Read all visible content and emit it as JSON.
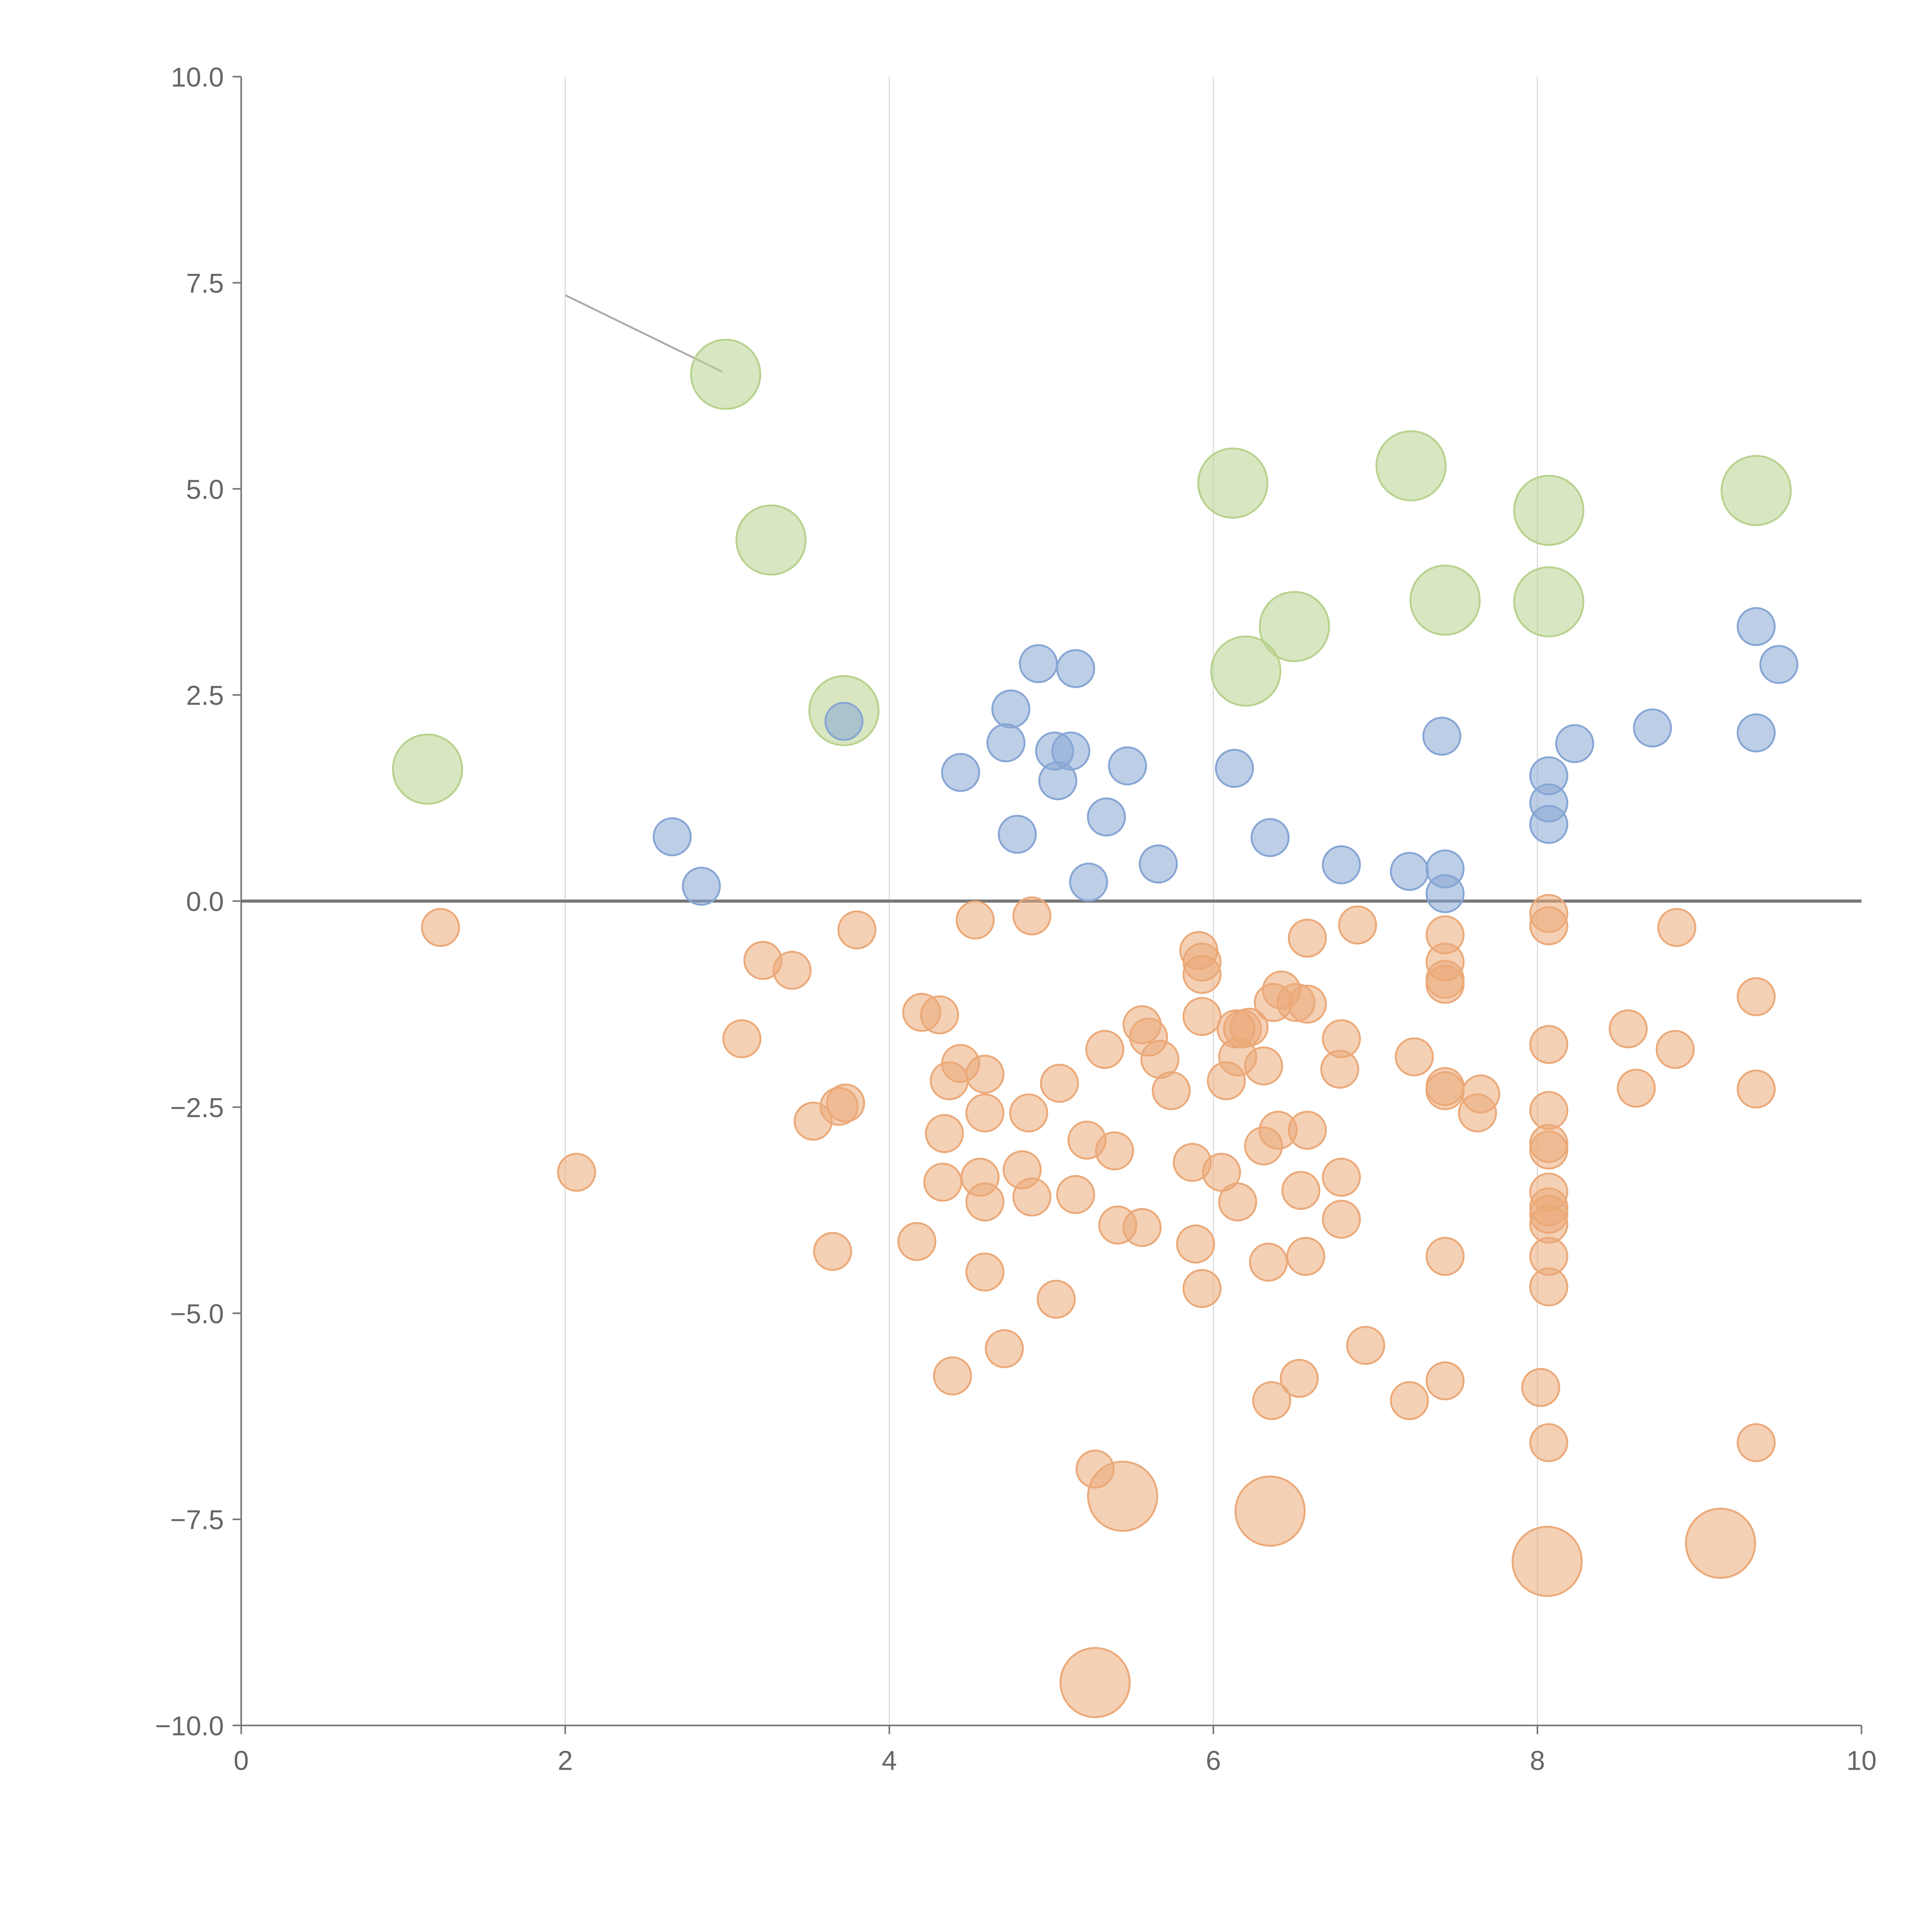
{
  "chart_data": {
    "type": "scatter",
    "title": "",
    "xlabel": "",
    "ylabel": "",
    "xlim": [
      0,
      10
    ],
    "ylim": [
      -10,
      10
    ],
    "grid": "vertical",
    "x_ticks": [
      "0",
      "2",
      "4",
      "6",
      "8",
      "10"
    ],
    "y_ticks": [
      "10.0",
      "7.5",
      "5.0",
      "2.5",
      "0.0",
      "−2.5",
      "−5.0",
      "−7.5",
      "−10.0"
    ],
    "reference_line_y": 0,
    "series": [
      {
        "name": "green",
        "color": "#b8d28e",
        "size": 2,
        "points": [
          [
            1.15,
            1.6
          ],
          [
            2.99,
            6.39
          ],
          [
            3.27,
            4.38
          ],
          [
            3.72,
            2.31
          ],
          [
            6.12,
            5.07
          ],
          [
            6.2,
            2.79
          ],
          [
            6.5,
            3.33
          ],
          [
            7.22,
            5.28
          ],
          [
            7.43,
            3.65
          ],
          [
            8.07,
            4.74
          ],
          [
            8.07,
            3.63
          ],
          [
            9.35,
            4.98
          ]
        ]
      },
      {
        "name": "blue",
        "color": "#86a6d4",
        "size": 1,
        "points": [
          [
            2.66,
            0.78
          ],
          [
            2.84,
            0.18
          ],
          [
            3.72,
            2.18
          ],
          [
            4.44,
            1.56
          ],
          [
            4.72,
            1.92
          ],
          [
            4.75,
            2.33
          ],
          [
            4.79,
            0.81
          ],
          [
            4.92,
            2.88
          ],
          [
            5.02,
            1.82
          ],
          [
            5.04,
            1.46
          ],
          [
            5.12,
            1.82
          ],
          [
            5.15,
            2.82
          ],
          [
            5.23,
            0.23
          ],
          [
            5.34,
            1.02
          ],
          [
            5.47,
            1.64
          ],
          [
            5.66,
            0.45
          ],
          [
            6.13,
            1.61
          ],
          [
            6.35,
            0.77
          ],
          [
            6.79,
            0.44
          ],
          [
            7.21,
            0.36
          ],
          [
            7.41,
            2.0
          ],
          [
            7.43,
            0.39
          ],
          [
            7.43,
            0.09
          ],
          [
            8.07,
            1.52
          ],
          [
            8.07,
            1.19
          ],
          [
            8.07,
            0.93
          ],
          [
            8.23,
            1.91
          ],
          [
            8.71,
            2.1
          ],
          [
            9.35,
            3.33
          ],
          [
            9.49,
            2.87
          ],
          [
            9.35,
            2.04
          ]
        ]
      },
      {
        "name": "orange",
        "color": "#eba978",
        "size": 1,
        "points": [
          [
            1.23,
            -0.32
          ],
          [
            2.07,
            -3.29
          ],
          [
            3.09,
            -1.67
          ],
          [
            3.22,
            -0.72
          ],
          [
            3.4,
            -0.84
          ],
          [
            3.53,
            -2.67
          ],
          [
            3.65,
            -4.25
          ],
          [
            3.69,
            -2.49
          ],
          [
            3.73,
            -2.45
          ],
          [
            3.8,
            -0.35
          ],
          [
            4.17,
            -4.13
          ],
          [
            4.2,
            -1.35
          ],
          [
            4.31,
            -1.38
          ],
          [
            4.37,
            -2.18
          ],
          [
            4.44,
            -1.97
          ],
          [
            4.34,
            -2.82
          ],
          [
            4.33,
            -3.41
          ],
          [
            4.39,
            -5.76
          ],
          [
            4.53,
            -0.23
          ],
          [
            4.59,
            -2.1
          ],
          [
            4.59,
            -2.57
          ],
          [
            4.56,
            -3.35
          ],
          [
            4.59,
            -3.65
          ],
          [
            4.59,
            -4.5
          ],
          [
            4.71,
            -5.43
          ],
          [
            4.82,
            -3.26
          ],
          [
            4.86,
            -2.57
          ],
          [
            4.88,
            -3.59
          ],
          [
            4.88,
            -0.18
          ],
          [
            5.03,
            -4.83
          ],
          [
            5.05,
            -2.21
          ],
          [
            5.15,
            -3.56
          ],
          [
            5.22,
            -2.9
          ],
          [
            5.27,
            -6.89
          ],
          [
            5.33,
            -1.8
          ],
          [
            5.39,
            -3.03
          ],
          [
            5.41,
            -3.93
          ],
          [
            5.56,
            -1.5
          ],
          [
            5.6,
            -1.65
          ],
          [
            5.56,
            -3.96
          ],
          [
            5.67,
            -1.92
          ],
          [
            5.74,
            -2.3
          ],
          [
            5.91,
            -0.6
          ],
          [
            5.93,
            -0.74
          ],
          [
            5.93,
            -0.89
          ],
          [
            5.93,
            -1.4
          ],
          [
            5.87,
            -3.17
          ],
          [
            5.89,
            -4.16
          ],
          [
            5.93,
            -4.7
          ],
          [
            6.08,
            -2.18
          ],
          [
            6.05,
            -3.29
          ],
          [
            6.14,
            -1.55
          ],
          [
            6.18,
            -1.55
          ],
          [
            6.15,
            -1.89
          ],
          [
            6.15,
            -3.65
          ],
          [
            6.22,
            -1.53
          ],
          [
            6.31,
            -2.0
          ],
          [
            6.31,
            -2.97
          ],
          [
            6.37,
            -1.23
          ],
          [
            6.42,
            -1.08
          ],
          [
            6.4,
            -2.78
          ],
          [
            6.34,
            -4.38
          ],
          [
            6.36,
            -6.06
          ],
          [
            6.51,
            -1.23
          ],
          [
            6.58,
            -1.25
          ],
          [
            6.58,
            -0.45
          ],
          [
            6.58,
            -2.78
          ],
          [
            6.54,
            -3.51
          ],
          [
            6.57,
            -4.31
          ],
          [
            6.53,
            -5.79
          ],
          [
            6.79,
            -1.67
          ],
          [
            6.78,
            -2.04
          ],
          [
            6.79,
            -3.35
          ],
          [
            6.79,
            -3.86
          ],
          [
            6.89,
            -0.29
          ],
          [
            6.94,
            -5.39
          ],
          [
            7.24,
            -1.89
          ],
          [
            7.21,
            -6.06
          ],
          [
            7.43,
            -0.41
          ],
          [
            7.43,
            -0.74
          ],
          [
            7.43,
            -0.95
          ],
          [
            7.43,
            -1.01
          ],
          [
            7.43,
            -2.25
          ],
          [
            7.43,
            -2.3
          ],
          [
            7.65,
            -2.34
          ],
          [
            7.63,
            -2.57
          ],
          [
            7.43,
            -4.31
          ],
          [
            7.43,
            -5.82
          ],
          [
            8.02,
            -5.9
          ],
          [
            8.07,
            -0.15
          ],
          [
            8.07,
            -0.3
          ],
          [
            8.07,
            -1.74
          ],
          [
            8.07,
            -2.54
          ],
          [
            8.07,
            -2.94
          ],
          [
            8.07,
            -3.02
          ],
          [
            8.07,
            -3.53
          ],
          [
            8.07,
            -3.71
          ],
          [
            8.07,
            -3.8
          ],
          [
            8.07,
            -3.92
          ],
          [
            8.07,
            -4.31
          ],
          [
            8.07,
            -4.68
          ],
          [
            8.07,
            -6.57
          ],
          [
            8.56,
            -1.55
          ],
          [
            8.61,
            -2.27
          ],
          [
            8.85,
            -1.8
          ],
          [
            8.86,
            -0.32
          ],
          [
            9.35,
            -1.16
          ],
          [
            9.35,
            -2.28
          ],
          [
            9.35,
            -6.57
          ]
        ]
      },
      {
        "name": "orange-large",
        "color": "#eba978",
        "size": 2,
        "points": [
          [
            5.44,
            -7.22
          ],
          [
            6.35,
            -7.4
          ],
          [
            8.06,
            -8.01
          ],
          [
            9.13,
            -7.79
          ],
          [
            5.27,
            -9.48
          ]
        ]
      }
    ],
    "annotation_leader": {
      "from": [
        2.0,
        7.35
      ],
      "to": [
        2.97,
        6.42
      ]
    }
  }
}
